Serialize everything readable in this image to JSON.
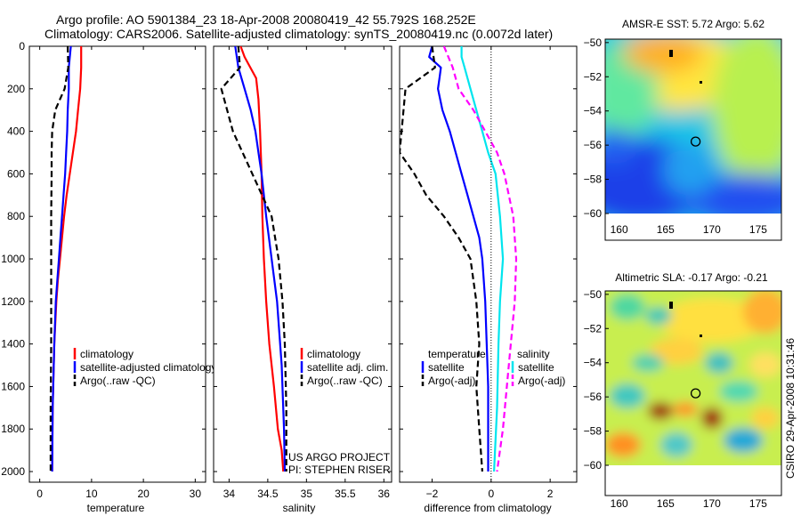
{
  "header": {
    "line1": "Argo profile: AO 5901384_23 18-Apr-2008 20080419_42 55.792S 168.252E",
    "line2": "Climatology: CARS2006. Satellite-adjusted climatology: synTS_20080419.nc (0.0072d later)"
  },
  "colors": {
    "clim": "#ff0000",
    "sat": "#0000ff",
    "argo": "#000000",
    "sal_sat": "#00e5ee",
    "sal_argo": "#ff00ff"
  },
  "project": {
    "line1": "US ARGO PROJECT",
    "line2": "PI: STEPHEN RISER"
  },
  "credit": "CSIRO  29-Apr-2008 10:31:46",
  "chart_data": [
    {
      "type": "line",
      "id": "temperature",
      "xlabel": "temperature",
      "ylabel": "",
      "xlim": [
        -2,
        32
      ],
      "ylim": [
        2050,
        0
      ],
      "xticks": [
        0,
        10,
        20,
        30
      ],
      "yticks": [
        0,
        200,
        400,
        600,
        800,
        1000,
        1200,
        1400,
        1600,
        1800,
        2000
      ],
      "legend": {
        "position": "lower-right",
        "entries": [
          "climatology",
          "satellite-adjusted climatology",
          "Argo(..raw -QC)"
        ]
      },
      "series": [
        {
          "name": "climatology",
          "style": "solid",
          "color": "clim",
          "x": [
            8.0,
            8.0,
            7.8,
            7.4,
            7.0,
            6.4,
            5.8,
            5.2,
            4.7,
            4.3,
            3.9,
            3.5,
            3.2,
            2.8,
            2.5,
            2.4
          ],
          "y": [
            0,
            100,
            200,
            300,
            400,
            500,
            600,
            700,
            800,
            900,
            1000,
            1100,
            1200,
            1400,
            1700,
            2000
          ]
        },
        {
          "name": "satellite-adjusted climatology",
          "style": "solid",
          "color": "sat",
          "x": [
            6.0,
            5.6,
            5.6,
            5.4,
            5.3,
            5.1,
            4.9,
            4.6,
            4.3,
            4.0,
            3.7,
            3.4,
            3.1,
            2.8,
            2.5,
            2.4
          ],
          "y": [
            0,
            100,
            200,
            300,
            400,
            500,
            600,
            700,
            800,
            900,
            1000,
            1100,
            1200,
            1400,
            1700,
            2000
          ]
        },
        {
          "name": "Argo(..raw -QC)",
          "style": "dashed",
          "color": "argo",
          "x": [
            5.4,
            5.5,
            4.8,
            3.0,
            2.4,
            2.3,
            2.3,
            2.2,
            2.2,
            2.2,
            2.1,
            2.1
          ],
          "y": [
            0,
            100,
            200,
            300,
            400,
            500,
            600,
            800,
            1000,
            1400,
            1700,
            2000
          ]
        }
      ]
    },
    {
      "type": "line",
      "id": "salinity",
      "xlabel": "salinity",
      "ylabel": "",
      "xlim": [
        33.8,
        36.1
      ],
      "ylim": [
        2050,
        0
      ],
      "xticks": [
        34,
        34.5,
        35,
        35.5,
        36
      ],
      "xticklabels": [
        "34",
        "34.5",
        "35",
        "35.5",
        "36"
      ],
      "legend": {
        "position": "lower-right",
        "entries": [
          "climatology",
          "satellite adj. clim.",
          "Argo(..raw -QC)"
        ]
      },
      "series": [
        {
          "name": "climatology",
          "style": "solid",
          "color": "clim",
          "x": [
            34.15,
            34.2,
            34.35,
            34.38,
            34.4,
            34.42,
            34.43,
            34.45,
            34.48,
            34.52,
            34.58,
            34.63,
            34.68,
            34.7,
            34.7
          ],
          "y": [
            0,
            50,
            150,
            250,
            400,
            600,
            800,
            1000,
            1200,
            1400,
            1600,
            1800,
            1900,
            2000,
            2000
          ]
        },
        {
          "name": "satellite adj. clim.",
          "style": "solid",
          "color": "sat",
          "x": [
            34.08,
            34.12,
            34.2,
            34.28,
            34.34,
            34.38,
            34.42,
            34.48,
            34.55,
            34.62,
            34.68,
            34.71,
            34.72
          ],
          "y": [
            0,
            100,
            200,
            300,
            400,
            500,
            600,
            800,
            1000,
            1200,
            1500,
            1800,
            2000
          ]
        },
        {
          "name": "Argo(..raw -QC)",
          "style": "dashed",
          "color": "argo",
          "x": [
            34.12,
            34.14,
            33.9,
            34.05,
            34.3,
            34.55,
            34.64,
            34.69,
            34.72,
            34.74,
            34.74
          ],
          "y": [
            0,
            100,
            200,
            400,
            600,
            800,
            1000,
            1200,
            1400,
            1700,
            2000
          ]
        }
      ]
    },
    {
      "type": "line",
      "id": "difference",
      "xlabel": "difference from climatology",
      "ylabel": "",
      "xlim": [
        -3.1,
        2.9
      ],
      "ylim": [
        2050,
        0
      ],
      "xticks": [
        -2,
        0,
        2
      ],
      "xticklabels": [
        "−2",
        "0",
        "2"
      ],
      "legend": {
        "position": "lower-center",
        "headers": [
          "temperature",
          "salinity"
        ],
        "entries": [
          "satellite",
          "Argo(-adj)",
          "satellite",
          "Argo(-adj)"
        ]
      },
      "series": [
        {
          "name": "satellite",
          "group": "temperature",
          "style": "solid",
          "color": "sat",
          "x": [
            -2.0,
            -2.1,
            -1.7,
            -1.75,
            -1.8,
            -1.65,
            -1.4,
            -1.2,
            -1.0,
            -0.8,
            -0.6,
            -0.4,
            -0.3,
            -0.2,
            -0.1,
            -0.1
          ],
          "y": [
            0,
            50,
            100,
            150,
            200,
            300,
            400,
            500,
            600,
            700,
            800,
            900,
            1000,
            1200,
            1600,
            2000
          ]
        },
        {
          "name": "Argo(-adj)",
          "group": "temperature",
          "style": "dashed",
          "color": "argo",
          "x": [
            -2.0,
            -1.9,
            -2.9,
            -3.1,
            -2.6,
            -2.2,
            -1.6,
            -1.1,
            -0.7,
            -0.5,
            -0.4,
            -0.5,
            -0.4,
            -0.3
          ],
          "y": [
            0,
            100,
            200,
            500,
            600,
            700,
            800,
            900,
            1000,
            1200,
            1400,
            1600,
            1800,
            2000
          ]
        },
        {
          "name": "satellite",
          "group": "salinity",
          "style": "solid",
          "color": "sal_sat",
          "x": [
            -1.0,
            -1.0,
            -0.9,
            -0.8,
            -0.7,
            -0.5,
            -0.3,
            -0.1,
            0.15,
            0.3,
            0.4,
            0.3,
            0.25,
            0.2,
            0.1
          ],
          "y": [
            0,
            50,
            100,
            150,
            200,
            300,
            400,
            500,
            600,
            800,
            1000,
            1200,
            1400,
            1700,
            2000
          ]
        },
        {
          "name": "Argo(-adj)",
          "group": "salinity",
          "style": "dashed",
          "color": "sal_argo",
          "x": [
            -1.6,
            -1.3,
            -1.1,
            -0.6,
            -0.2,
            0.2,
            0.45,
            0.75,
            0.85,
            0.8,
            0.6,
            0.4,
            0.2
          ],
          "y": [
            0,
            100,
            200,
            300,
            400,
            500,
            600,
            800,
            1000,
            1200,
            1500,
            1800,
            2000
          ]
        },
        {
          "name": "",
          "style": "dotted",
          "color": "argo",
          "x": [
            0,
            0
          ],
          "y": [
            0,
            2050
          ]
        }
      ]
    },
    {
      "type": "heatmap",
      "id": "sst-map",
      "title": "AMSR-E SST: 5.72  Argo: 5.62",
      "xlim": [
        158.5,
        177.5
      ],
      "ylim": [
        -60,
        -49.8
      ],
      "xticks": [
        160,
        165,
        170,
        175
      ],
      "yticks": [
        -50,
        -52,
        -54,
        -56,
        -58,
        -60
      ],
      "yticklabels": [
        "−50",
        "−52",
        "−54",
        "−56",
        "−58",
        "−60"
      ],
      "argo_position": [
        168.25,
        -55.79
      ]
    },
    {
      "type": "heatmap",
      "id": "sla-map",
      "title": "Altimetric SLA: -0.17  Argo: -0.21",
      "xlim": [
        158.5,
        177.5
      ],
      "ylim": [
        -60,
        -49.8
      ],
      "xticks": [
        160,
        165,
        170,
        175
      ],
      "yticks": [
        -50,
        -52,
        -54,
        -56,
        -58,
        -60
      ],
      "yticklabels": [
        "−50",
        "−52",
        "−54",
        "−56",
        "−58",
        "−60"
      ],
      "argo_position": [
        168.25,
        -55.79
      ]
    }
  ]
}
